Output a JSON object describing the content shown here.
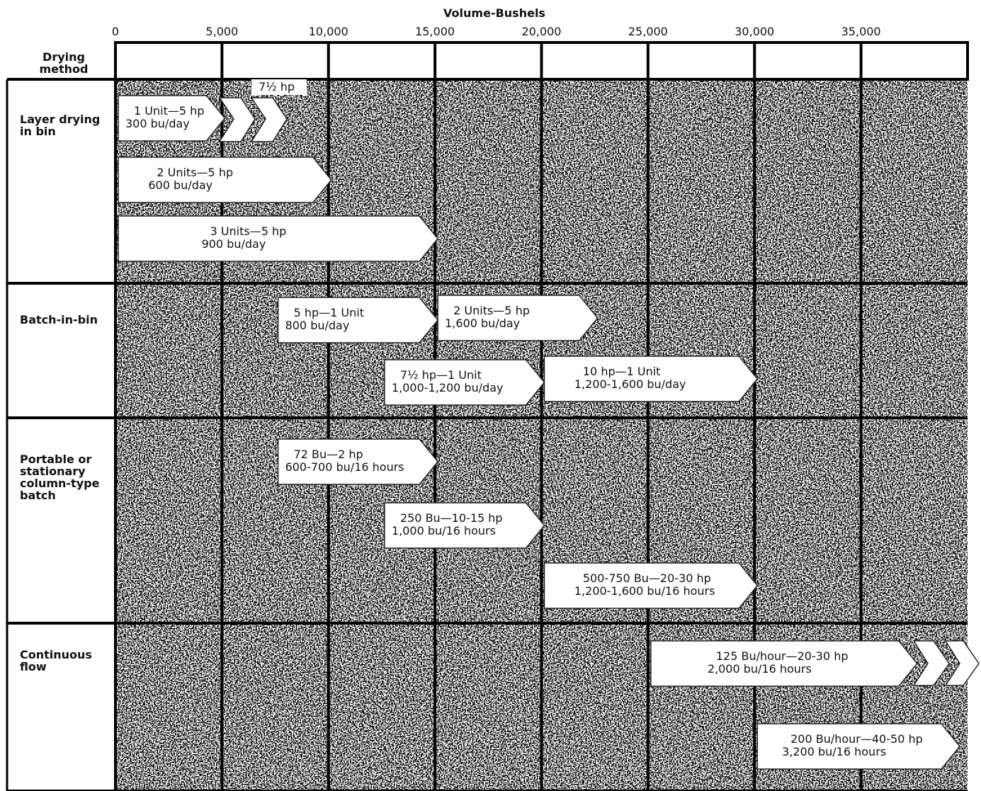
{
  "axis": {
    "title": "Volume-Bushels",
    "xlim": [
      0,
      40000
    ],
    "xticks": [
      0,
      {
        "value": 5000,
        "label": "5,000"
      },
      {
        "value": 10000,
        "label": "10,000"
      },
      {
        "value": 15000,
        "label": "15,000"
      },
      {
        "value": 20000,
        "label": "20,000"
      },
      {
        "value": 25000,
        "label": "25,000"
      },
      {
        "value": 30000,
        "label": "30,000"
      },
      {
        "value": 35000,
        "label": "35,000"
      }
    ]
  },
  "corner_label": "Drying method",
  "rows": [
    {
      "name": "Layer drying in bin",
      "note": "7½ hp",
      "arrows": [
        {
          "line1": "1 Unit—5 hp",
          "line2": "300 bu/day",
          "start": 0,
          "end": 5000
        },
        {
          "line1": "2 Units—5 hp",
          "line2": "600 bu/day",
          "start": 0,
          "end": 10000
        },
        {
          "line1": "3 Units—5 hp",
          "line2": "900 bu/day",
          "start": 0,
          "end": 15000
        }
      ]
    },
    {
      "name": "Batch-in-bin",
      "arrows": [
        {
          "line1": "5 hp—1 Unit",
          "line2": "800 bu/day",
          "start": 7500,
          "end": 15000
        },
        {
          "line1": "2 Units—5 hp",
          "line2": "1,600 bu/day",
          "start": 15000,
          "end": 22500
        },
        {
          "line1": "7½ hp—1 Unit",
          "line2": "1,000-1,200 bu/day",
          "start": 12500,
          "end": 20000
        },
        {
          "line1": "10 hp—1 Unit",
          "line2": "1,200-1,600 bu/day",
          "start": 20000,
          "end": 30000
        }
      ]
    },
    {
      "name": "Portable or stationary column-type batch",
      "arrows": [
        {
          "line1": "72 Bu—2 hp",
          "line2": "600-700 bu/16 hours",
          "start": 7500,
          "end": 15000
        },
        {
          "line1": "250 Bu—10-15 hp",
          "line2": "1,000 bu/16 hours",
          "start": 12500,
          "end": 20000
        },
        {
          "line1": "500-750 Bu—20-30 hp",
          "line2": "1,200-1,600 bu/16 hours",
          "start": 20000,
          "end": 30000
        }
      ]
    },
    {
      "name": "Continuous flow",
      "arrows": [
        {
          "line1": "125 Bu/hour—20-30 hp",
          "line2": "2,000 bu/16 hours",
          "start": 25000,
          "end": 37500
        },
        {
          "line1": "200 Bu/hour—40-50 hp",
          "line2": "3,200 bu/16 hours",
          "start": 30000,
          "end": 39500
        }
      ]
    }
  ]
}
